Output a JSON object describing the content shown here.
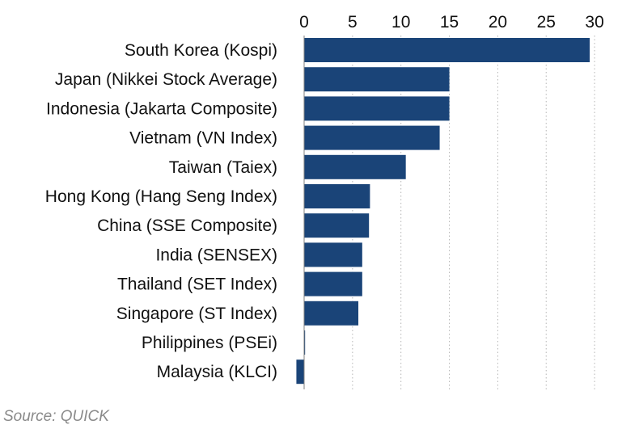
{
  "chart_data": {
    "type": "bar",
    "orientation": "horizontal",
    "title": "",
    "xlabel": "",
    "ylabel": "",
    "categories": [
      "South Korea (Kospi)",
      "Japan (Nikkei Stock Average)",
      "Indonesia (Jakarta Composite)",
      "Vietnam (VN Index)",
      "Taiwan (Taiex)",
      "Hong Kong (Hang Seng Index)",
      "China (SSE Composite)",
      "India (SENSEX)",
      "Thailand (SET Index)",
      "Singapore (ST Index)",
      "Philippines (PSEi)",
      "Malaysia (KLCI)"
    ],
    "values": [
      29.5,
      15.0,
      15.0,
      14.0,
      10.5,
      6.8,
      6.7,
      6.0,
      6.0,
      5.6,
      0.1,
      -0.8
    ],
    "xlim": [
      -1,
      30.5
    ],
    "ticks": [
      0,
      5,
      10,
      15,
      20,
      25,
      30
    ],
    "tick_labels": [
      "0",
      "5",
      "10",
      "15",
      "20",
      "25",
      "30"
    ],
    "axis_position": "top",
    "grid": "vertical dotted",
    "legend": "none",
    "bar_color": "#1a4478"
  },
  "source": "Source: QUICK"
}
